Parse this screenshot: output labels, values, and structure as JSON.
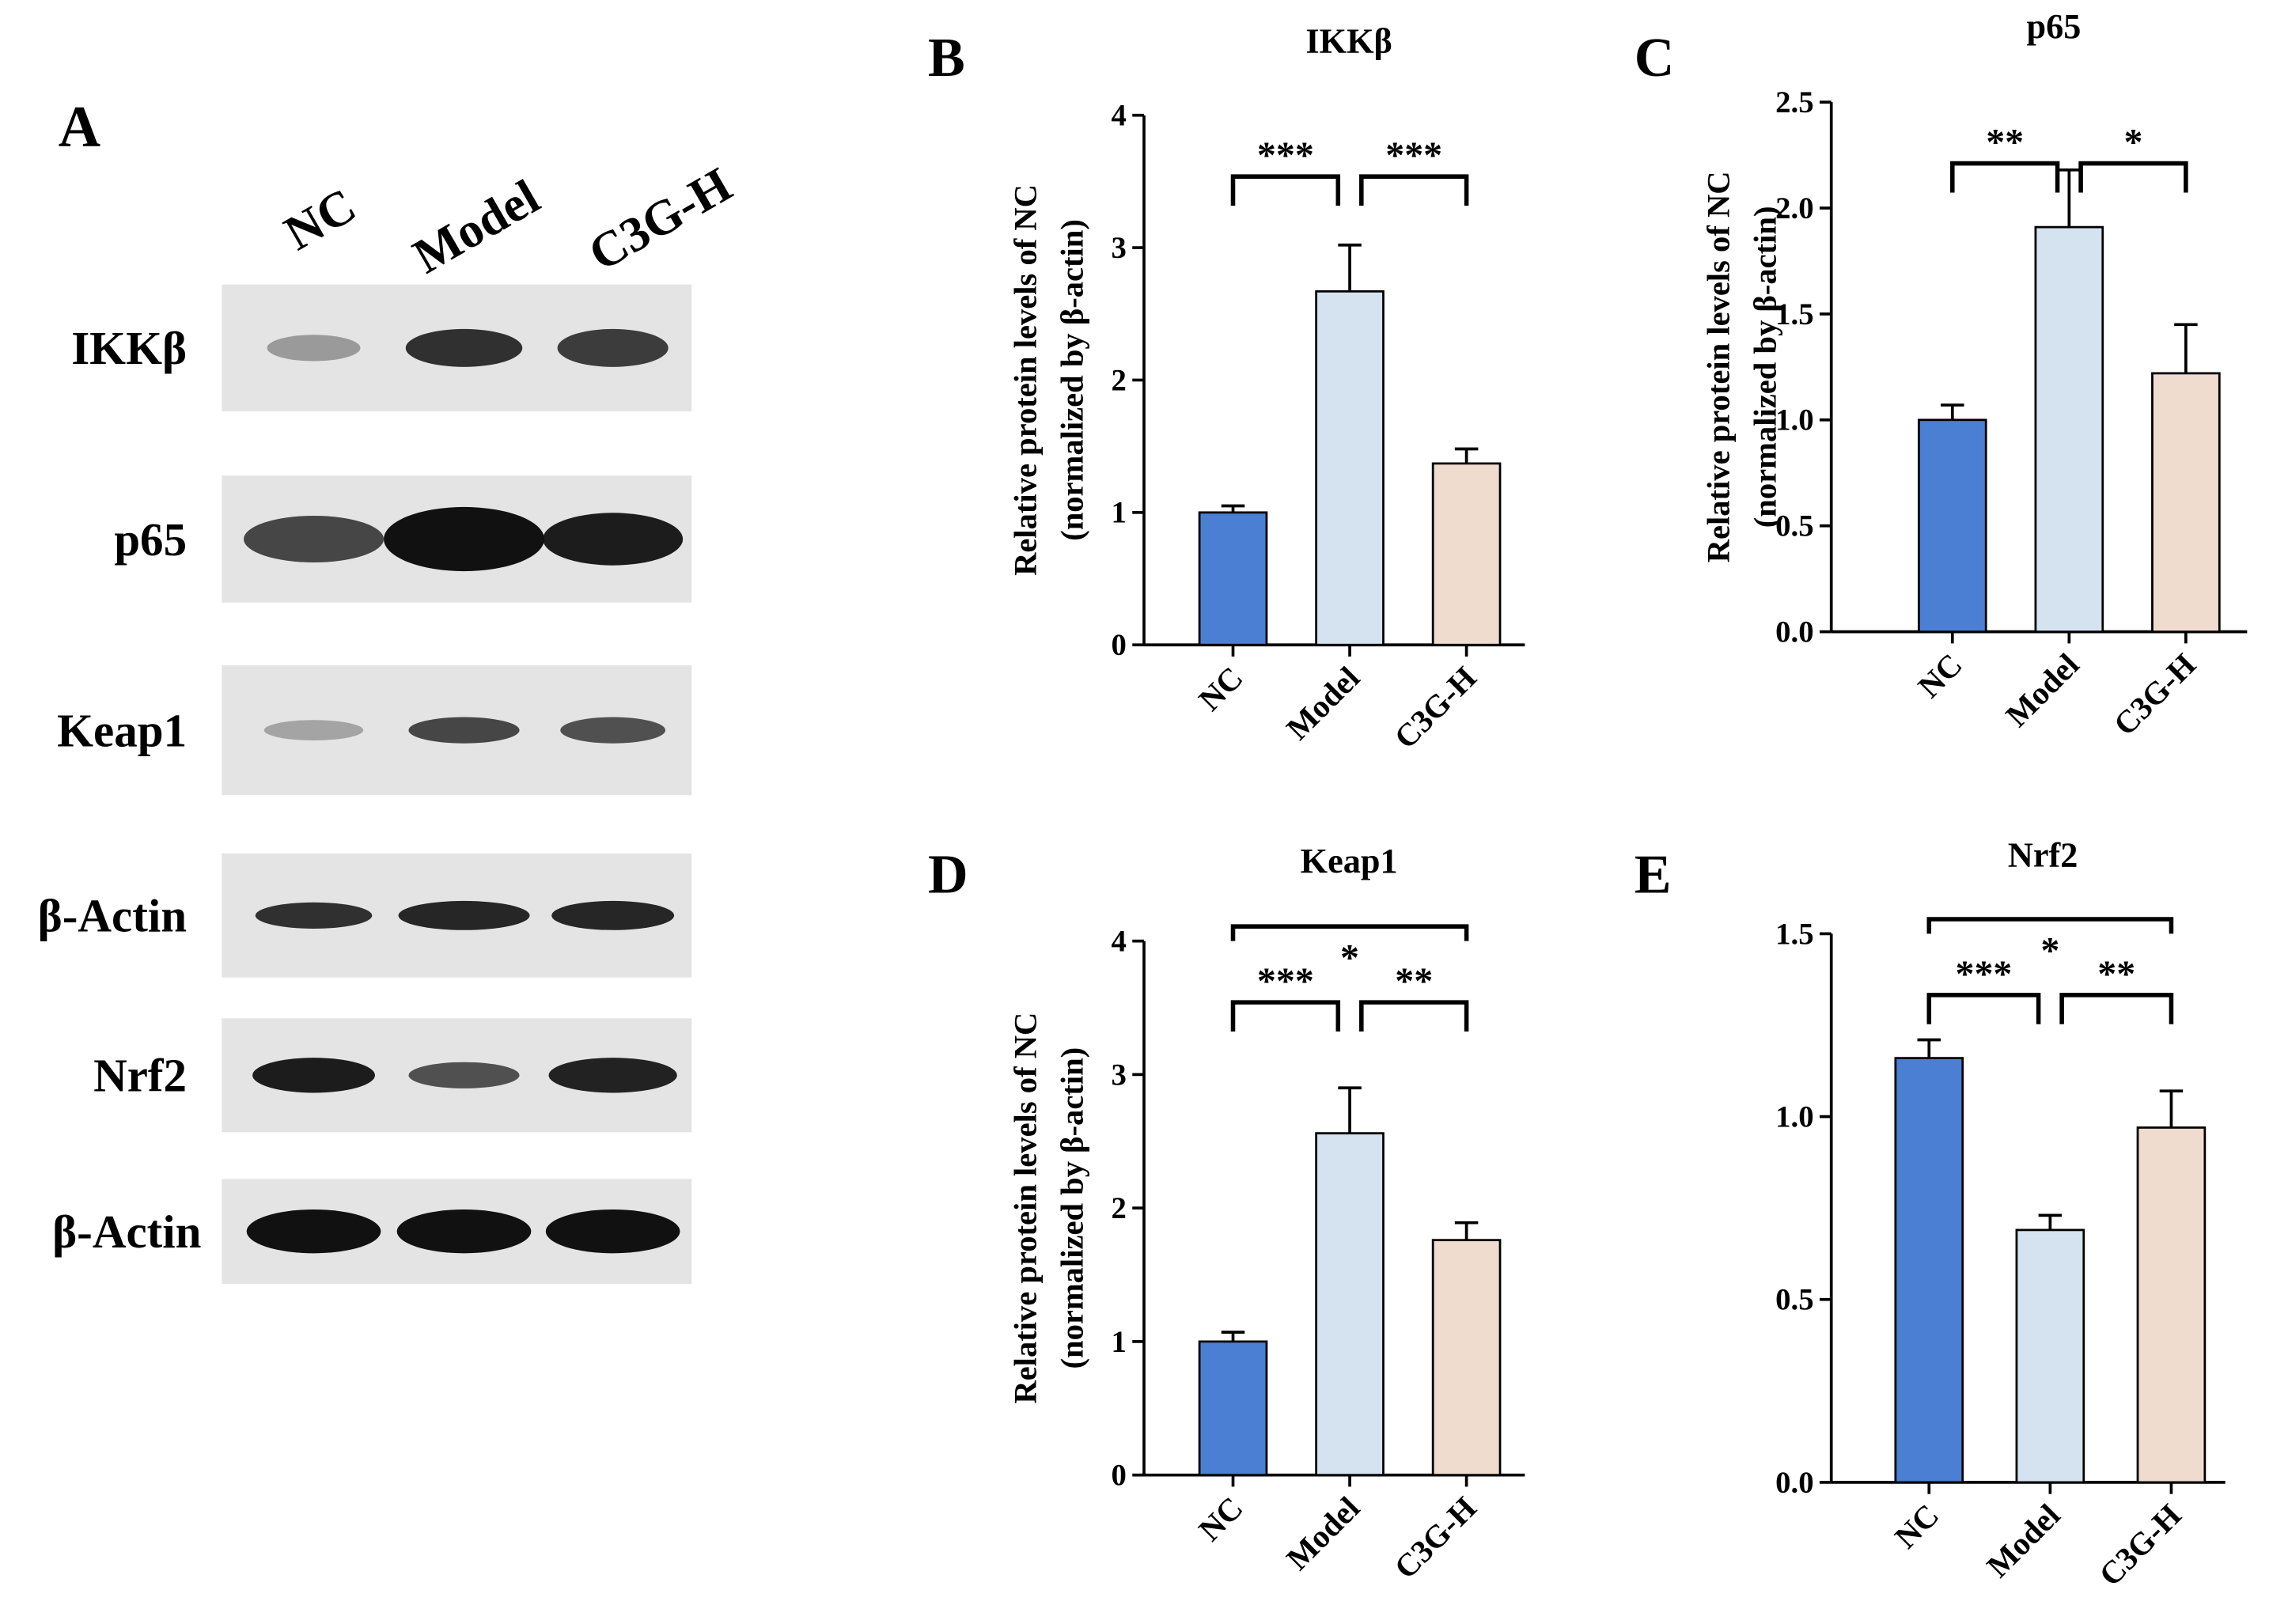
{
  "blot": {
    "panel": "A",
    "lanes": [
      "NC",
      "Model",
      "C3G-H"
    ],
    "rows": [
      "IKKβ",
      "p65",
      "Keap1",
      "β-Actin",
      "Nrf2",
      "β-Actin"
    ]
  },
  "chart_data": [
    {
      "type": "bar",
      "panel": "B",
      "title": "IKKβ",
      "ylabel": [
        "Relative protein levels of NC",
        "(normalized by β-actin)"
      ],
      "categories": [
        "NC",
        "Model",
        "C3G-H"
      ],
      "values": [
        1.0,
        2.67,
        1.37
      ],
      "errors": [
        0.05,
        0.35,
        0.11
      ],
      "colors": [
        "#4b7fd3",
        "#d5e2ef",
        "#f0dccf"
      ],
      "ylim": [
        0,
        4
      ],
      "yticks": [
        0,
        1,
        2,
        3,
        4
      ],
      "significance": [
        {
          "from": "NC",
          "to": "Model",
          "label": "***"
        },
        {
          "from": "Model",
          "to": "C3G-H",
          "label": "***"
        }
      ]
    },
    {
      "type": "bar",
      "panel": "C",
      "title": "p65",
      "ylabel": [
        "Relative protein levels of NC",
        "(normalized by β-actin)"
      ],
      "categories": [
        "NC",
        "Model",
        "C3G-H"
      ],
      "values": [
        1.0,
        1.91,
        1.22
      ],
      "errors": [
        0.07,
        0.27,
        0.23
      ],
      "colors": [
        "#4b7fd3",
        "#d5e2ef",
        "#f0dccf"
      ],
      "ylim": [
        0,
        2.5
      ],
      "yticks": [
        {
          "value": 0,
          "label": "0.0"
        },
        0.5,
        {
          "value": 1,
          "label": "1.0"
        },
        1.5,
        {
          "value": 2,
          "label": "2.0"
        },
        2.5
      ],
      "significance": [
        {
          "from": "NC",
          "to": "Model",
          "label": "**"
        },
        {
          "from": "Model",
          "to": "C3G-H",
          "label": "*"
        }
      ]
    },
    {
      "type": "bar",
      "panel": "D",
      "title": "Keap1",
      "ylabel": [
        "Relative protein levels of NC",
        "(normalized by β-actin)"
      ],
      "categories": [
        "NC",
        "Model",
        "C3G-H"
      ],
      "values": [
        1.0,
        2.56,
        1.76
      ],
      "errors": [
        0.07,
        0.34,
        0.13
      ],
      "colors": [
        "#4b7fd3",
        "#d5e2ef",
        "#f0dccf"
      ],
      "ylim": [
        0,
        4
      ],
      "yticks": [
        0,
        1,
        2,
        3,
        4
      ],
      "significance": [
        {
          "from": "NC",
          "to": "Model",
          "label": "***"
        },
        {
          "from": "Model",
          "to": "C3G-H",
          "label": "**"
        },
        {
          "from": "NC",
          "to": "C3G-H",
          "label": "*"
        }
      ]
    },
    {
      "type": "bar",
      "panel": "E",
      "title": "Nrf2",
      "ylabel": null,
      "categories": [
        "NC",
        "Model",
        "C3G-H"
      ],
      "values": [
        1.16,
        0.69,
        0.97
      ],
      "errors": [
        0.05,
        0.04,
        0.1
      ],
      "colors": [
        "#4b7fd3",
        "#d5e2ef",
        "#f0dccf"
      ],
      "ylim": [
        0,
        1.5
      ],
      "yticks": [
        {
          "value": 0,
          "label": "0.0"
        },
        0.5,
        {
          "value": 1,
          "label": "1.0"
        },
        1.5
      ],
      "significance": [
        {
          "from": "NC",
          "to": "Model",
          "label": "***"
        },
        {
          "from": "Model",
          "to": "C3G-H",
          "label": "**"
        },
        {
          "from": "NC",
          "to": "C3G-H",
          "label": "*"
        }
      ]
    }
  ]
}
